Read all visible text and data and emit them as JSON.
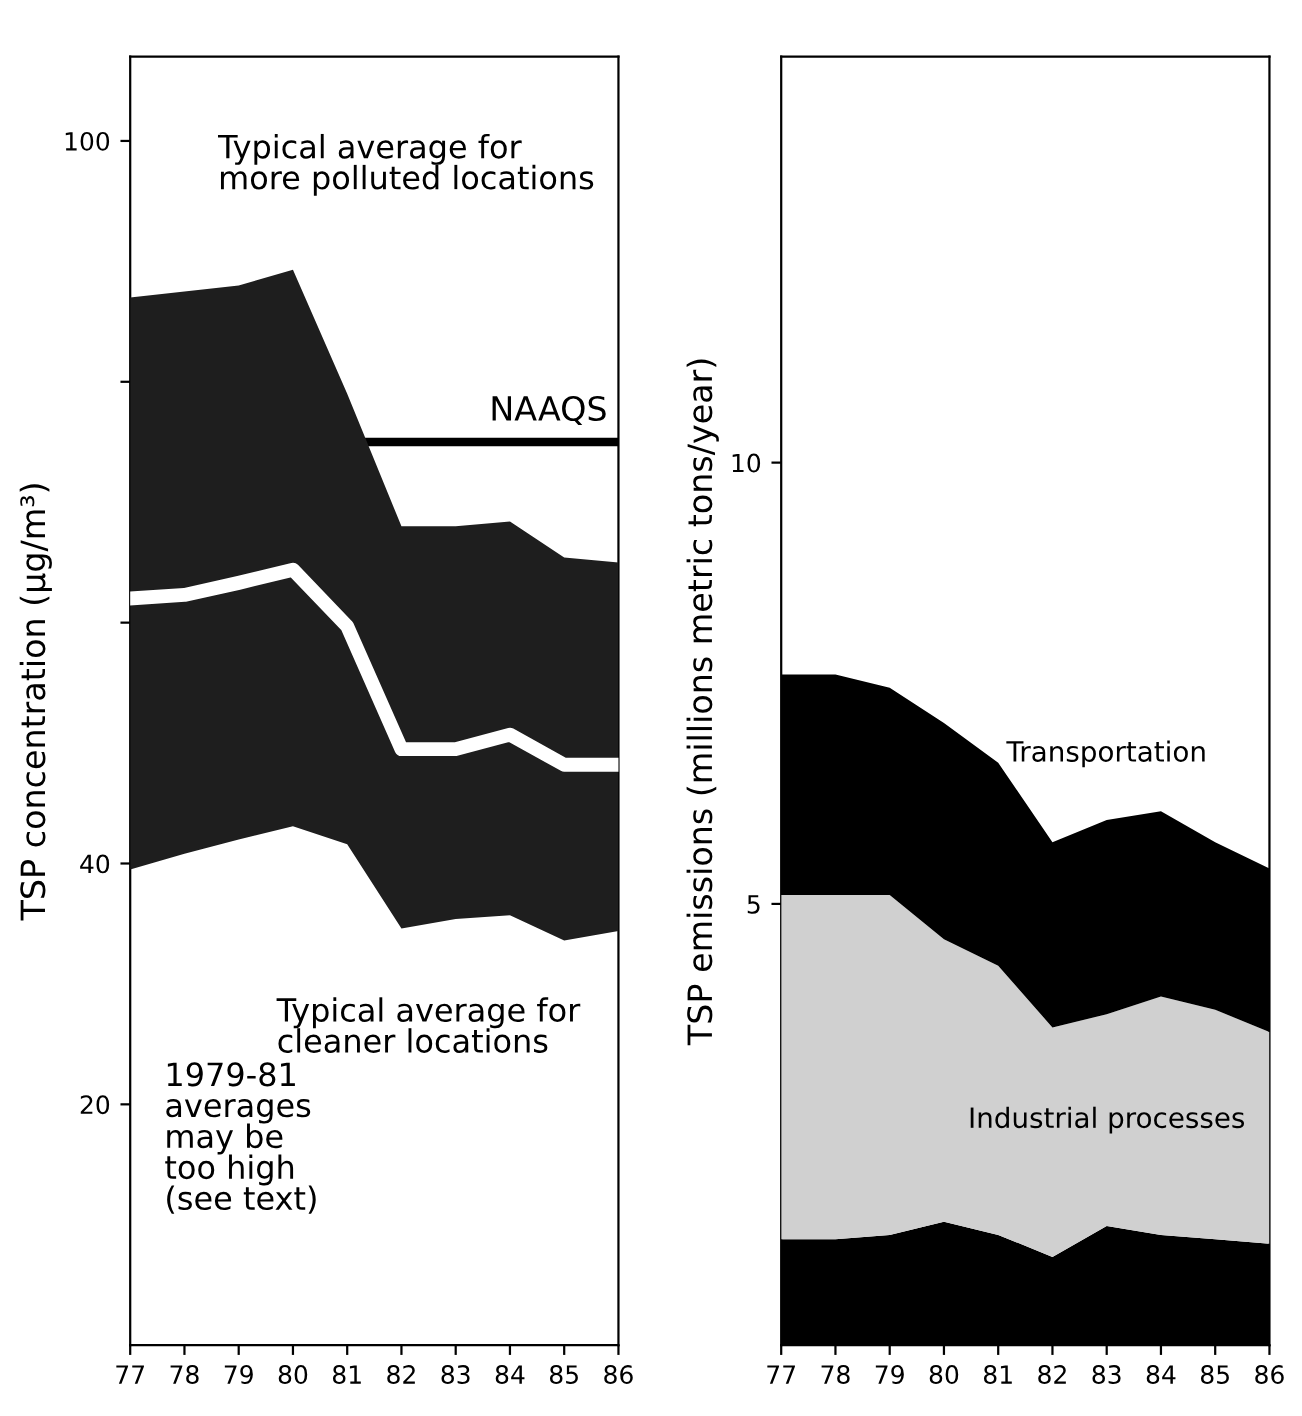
{
  "chart_data": [
    {
      "type": "line",
      "categories": [
        "77",
        "78",
        "79",
        "80",
        "81",
        "82",
        "83",
        "84",
        "85",
        "86"
      ],
      "ylabel": "TSP concentration (µg/m³)",
      "ylim": [
        0,
        107
      ],
      "yticks": [
        20,
        40,
        {
          "value": 60,
          "label": null
        },
        {
          "value": 80,
          "label": null
        },
        100
      ],
      "series": [
        {
          "color": "#ffffff",
          "values": [
            62,
            62.3,
            63.3,
            64.4,
            59.7,
            49.5,
            49.5,
            50.7,
            48.2,
            48.2
          ],
          "lower": [
            39.5,
            40.8,
            42,
            43.1,
            41.6,
            34.6,
            35.4,
            35.7,
            33.6,
            34.4
          ],
          "upper": [
            87,
            87.5,
            88,
            89.3,
            79,
            68,
            68,
            68.4,
            65.4,
            65
          ]
        }
      ],
      "ref_lines": [
        {
          "axis": "y",
          "value": 75,
          "label": "NAAQS",
          "color": "#000000"
        }
      ],
      "annotations": [
        "Typical average for\nmore polluted locations",
        "Typical average for\ncleaner locations",
        "1979-81\naverages\nmay be\ntoo high\n(see text)"
      ],
      "grid": false,
      "legend": false,
      "marker": "none",
      "line_style": "solid"
    },
    {
      "type": "area",
      "stacked": true,
      "categories": [
        "77",
        "78",
        "79",
        "80",
        "81",
        "82",
        "83",
        "84",
        "85",
        "86"
      ],
      "ylabel": "TSP emissions (millions metric tons/year)",
      "ylim": [
        0,
        14.6
      ],
      "yticks": [
        5,
        10
      ],
      "series": [
        {
          "color": "#000000",
          "values": [
            1.2,
            1.2,
            1.25,
            1.4,
            1.25,
            1.0,
            1.35,
            1.25,
            1.2,
            1.15
          ]
        },
        {
          "name": "Industrial processes",
          "color": "#d0d0d0",
          "values": [
            3.9,
            3.9,
            3.85,
            3.2,
            3.05,
            2.6,
            2.4,
            2.7,
            2.6,
            2.4
          ]
        },
        {
          "name": "Transportation",
          "color": "#000000",
          "values": [
            2.5,
            2.5,
            2.35,
            2.45,
            2.3,
            2.1,
            2.2,
            2.1,
            1.9,
            1.85
          ]
        }
      ],
      "grid": false,
      "legend": false
    }
  ]
}
